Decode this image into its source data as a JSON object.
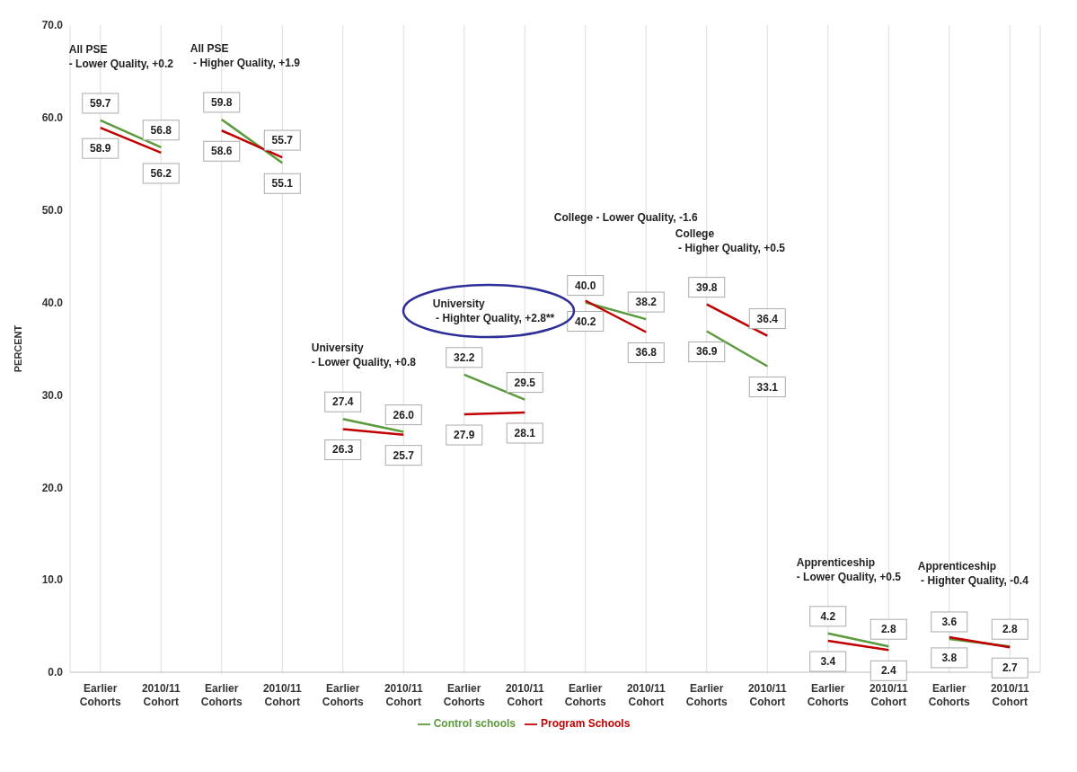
{
  "chart_data": {
    "type": "line",
    "ylabel": "PERCENT",
    "categories": [
      "Earlier Cohorts",
      "2010/11 Cohort",
      "Earlier Cohorts",
      "2010/11 Cohort",
      "Earlier Cohorts",
      "2010/11 Cohort",
      "Earlier Cohorts",
      "2010/11 Cohort",
      "Earlier Cohorts",
      "2010/11 Cohort",
      "Earlier Cohorts",
      "2010/11 Cohort",
      "Earlier Cohorts",
      "2010/11 Cohort",
      "Earlier Cohorts",
      "2010/11 Cohort"
    ],
    "series": [
      {
        "name": "Control schools",
        "color": "#5b9a3c",
        "values": [
          59.7,
          56.8,
          59.8,
          55.1,
          27.4,
          26.0,
          32.2,
          29.5,
          40.0,
          38.2,
          36.9,
          33.1,
          4.2,
          2.8,
          3.6,
          2.8
        ],
        "value_labels": [
          "59.7",
          "56.8",
          "59.8",
          "55.1",
          "27.4",
          "26.0",
          "32.2",
          "29.5",
          "40.0",
          "38.2",
          "36.9",
          "33.1",
          "4.2",
          "2.8",
          "3.6",
          "2.8"
        ]
      },
      {
        "name": "Program Schools",
        "color": "#c00000",
        "values": [
          58.9,
          56.2,
          58.6,
          55.7,
          26.3,
          25.7,
          27.9,
          28.1,
          40.2,
          36.8,
          39.8,
          36.4,
          3.4,
          2.4,
          3.8,
          2.7
        ],
        "value_labels": [
          "58.9",
          "56.2",
          "58.6",
          "55.7",
          "26.3",
          "25.7",
          "27.9",
          "28.1",
          "40.2",
          "36.8",
          "39.8",
          "36.4",
          "3.4",
          "2.4",
          "3.8",
          "2.7"
        ]
      }
    ],
    "ylim": [
      0,
      70
    ],
    "yticks": [
      {
        "value": 0,
        "label": "0.0"
      },
      {
        "value": 10,
        "label": "10.0"
      },
      {
        "value": 20,
        "label": "20.0"
      },
      {
        "value": 30,
        "label": "30.0"
      },
      {
        "value": 40,
        "label": "40.0"
      },
      {
        "value": 50,
        "label": "50.0"
      },
      {
        "value": 60,
        "label": "60.0"
      },
      {
        "value": 70,
        "label": "70.0"
      }
    ],
    "annotations": [
      "All PSE\n- Lower Quality, +0.2",
      "All PSE\n - Higher Quality, +1.9",
      "University\n- Lower Quality, +0.8",
      "University\n - Highter Quality, +2.8**",
      "College - Lower Quality, -1.6",
      "College\n - Higher Quality, +0.5",
      "Apprenticeship\n- Lower Quality, +0.5",
      "Apprenticeship\n - Highter Quality, -0.4"
    ],
    "grid": "x",
    "legend": "bottom",
    "marker": "none",
    "line_style": "solid"
  }
}
